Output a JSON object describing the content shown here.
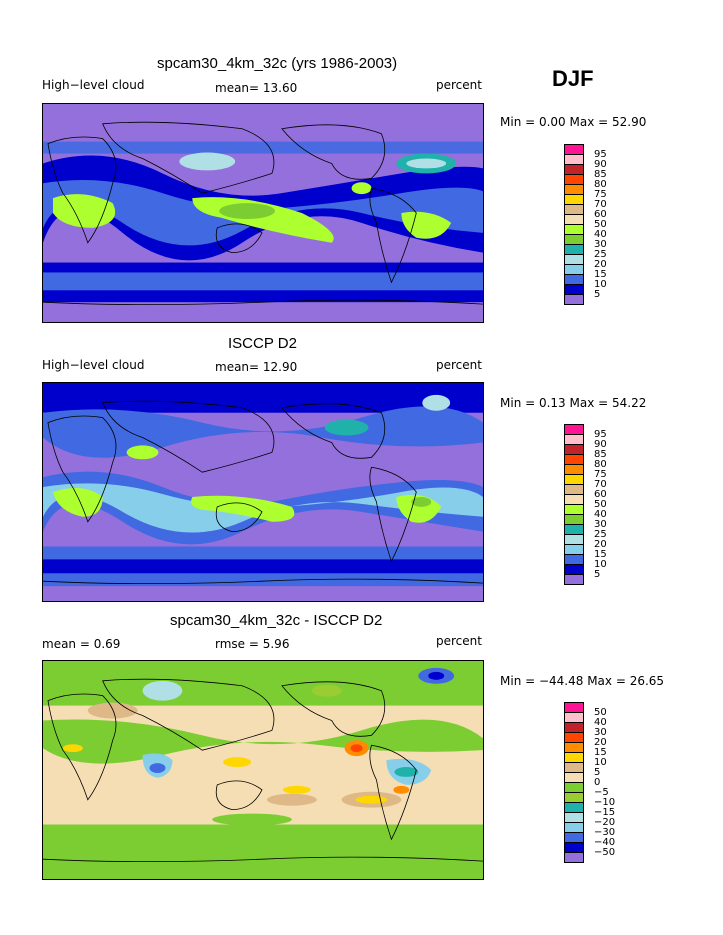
{
  "season": "DJF",
  "panels": [
    {
      "title": "spcam30_4km_32c (yrs 1986-2003)",
      "left_label": "High−level cloud",
      "mid_label": "mean=  13.60",
      "units": "percent",
      "stats": "Min =   0.00 Max =  52.90",
      "legend_labels": [
        "95",
        "90",
        "85",
        "80",
        "75",
        "70",
        "60",
        "50",
        "40",
        "30",
        "25",
        "20",
        "15",
        "10",
        "5"
      ],
      "legend_colors": [
        "#ff1493",
        "#ffc0cb",
        "#c0242a",
        "#ff4500",
        "#ff8c00",
        "#ffd700",
        "#deb887",
        "#f5deb3",
        "#adff2f",
        "#7ccd32",
        "#20b2aa",
        "#b0e0e6",
        "#87ceeb",
        "#4169e1",
        "#0000cd",
        "#9370db"
      ]
    },
    {
      "title": "ISCCP D2",
      "left_label": "High−level cloud",
      "mid_label": "mean=  12.90",
      "units": "percent",
      "stats": "Min =   0.13 Max =  54.22",
      "legend_labels": [
        "95",
        "90",
        "85",
        "80",
        "75",
        "70",
        "60",
        "50",
        "40",
        "30",
        "25",
        "20",
        "15",
        "10",
        "5"
      ],
      "legend_colors": [
        "#ff1493",
        "#ffc0cb",
        "#c0242a",
        "#ff4500",
        "#ff8c00",
        "#ffd700",
        "#deb887",
        "#f5deb3",
        "#adff2f",
        "#7ccd32",
        "#20b2aa",
        "#b0e0e6",
        "#87ceeb",
        "#4169e1",
        "#0000cd",
        "#9370db"
      ]
    },
    {
      "title": "spcam30_4km_32c - ISCCP D2",
      "left_label": "mean =    0.69",
      "mid_label": "rmse =    5.96",
      "units": "percent",
      "stats": "Min = −44.48 Max =  26.65",
      "legend_labels": [
        "50",
        "40",
        "30",
        "20",
        "15",
        "10",
        "5",
        "0",
        "−5",
        "−10",
        "−15",
        "−20",
        "−30",
        "−40",
        "−50"
      ],
      "legend_colors": [
        "#ff1493",
        "#ffc0cb",
        "#c0242a",
        "#ff4500",
        "#ff8c00",
        "#ffd700",
        "#deb887",
        "#f5deb3",
        "#7ccd32",
        "#9acd32",
        "#20b2aa",
        "#b0e0e6",
        "#87ceeb",
        "#4169e1",
        "#0000cd",
        "#9370db"
      ]
    }
  ],
  "colors": {
    "low": "#9370db",
    "navy": "#0000cd",
    "mid_blue": "#4169e1",
    "light_blue": "#87ceeb",
    "pale_blue": "#b0e0e6",
    "teal": "#20b2aa",
    "green": "#7ccd32",
    "yellow_green": "#adff2f",
    "tan": "#deb887",
    "wheat": "#f5deb3",
    "olive": "#7aa832"
  }
}
